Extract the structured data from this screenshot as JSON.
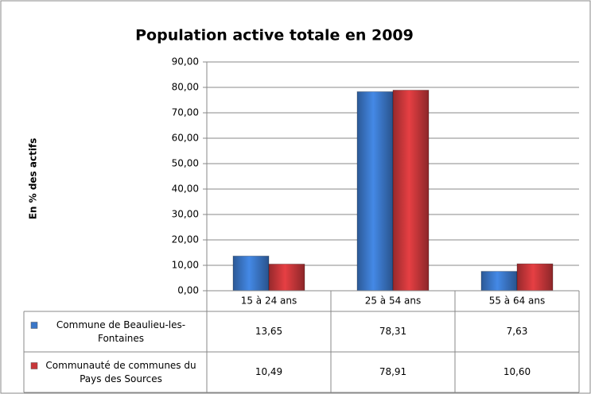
{
  "chart_data": {
    "type": "bar",
    "title": "Population active totale en 2009",
    "y_axis_label": "En % des actifs",
    "categories": [
      "15 à 24 ans",
      "25 à 54 ans",
      "55 à 64 ans"
    ],
    "series": [
      {
        "name": "Commune de Beaulieu-les-Fontaines",
        "color": "#3b77c8",
        "values": [
          13.65,
          78.31,
          7.63
        ],
        "value_labels": [
          "13,65",
          "78,31",
          "7,63"
        ]
      },
      {
        "name": "Communauté de communes du Pays des Sources",
        "color": "#c8373a",
        "values": [
          10.49,
          78.91,
          10.6
        ],
        "value_labels": [
          "10,49",
          "78,91",
          "10,60"
        ]
      }
    ],
    "ylim": [
      0,
      90
    ],
    "yticks": [
      {
        "value": 0,
        "label": "0,00"
      },
      {
        "value": 10,
        "label": "10,00"
      },
      {
        "value": 20,
        "label": "20,00"
      },
      {
        "value": 30,
        "label": "30,00"
      },
      {
        "value": 40,
        "label": "40,00"
      },
      {
        "value": 50,
        "label": "50,00"
      },
      {
        "value": 60,
        "label": "60,00"
      },
      {
        "value": 70,
        "label": "70,00"
      },
      {
        "value": 80,
        "label": "80,00"
      },
      {
        "value": 90,
        "label": "90,00"
      }
    ],
    "grid": true,
    "data_table": true
  }
}
